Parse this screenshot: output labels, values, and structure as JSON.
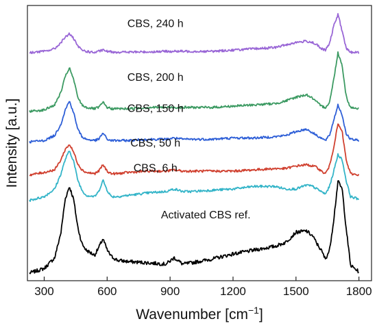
{
  "chart_data": {
    "type": "line",
    "title": "",
    "xlabel": "Wavenumber [cm",
    "xlabel_sup": "−1",
    "xlabel_suffix": "]",
    "ylabel": "Intensity [a.u.]",
    "xlim": [
      220,
      1860
    ],
    "ylim": [
      0,
      10.8
    ],
    "x_ticks": [
      300,
      600,
      900,
      1200,
      1500,
      1800
    ],
    "x_tick_labels": [
      "300",
      "600",
      "900",
      "1200",
      "1500",
      "1800"
    ],
    "y_ticks": [],
    "grid": false,
    "legend": "none",
    "x": [
      230,
      300,
      350,
      380,
      400,
      420,
      440,
      460,
      480,
      500,
      540,
      560,
      580,
      600,
      620,
      650,
      700,
      800,
      880,
      920,
      960,
      1000,
      1100,
      1200,
      1300,
      1400,
      1450,
      1500,
      1550,
      1580,
      1600,
      1620,
      1640,
      1660,
      1680,
      1700,
      1720,
      1740,
      1760,
      1800
    ],
    "series": [
      {
        "name": "Activated CBS ref.",
        "color": "#000000",
        "values": [
          0.3,
          0.48,
          0.9,
          1.9,
          3.2,
          3.7,
          3.2,
          2.1,
          1.45,
          1.2,
          1.0,
          1.3,
          1.65,
          1.2,
          0.95,
          0.8,
          0.75,
          0.7,
          0.65,
          0.9,
          0.65,
          0.7,
          0.85,
          1.05,
          1.2,
          1.35,
          1.5,
          1.9,
          1.95,
          1.75,
          1.45,
          1.2,
          0.85,
          1.2,
          2.4,
          3.9,
          3.6,
          2.0,
          0.6,
          0.35
        ]
      },
      {
        "name": "CBS, 6 h",
        "color": "#33b4c8",
        "values": [
          3.15,
          3.3,
          3.6,
          4.2,
          4.75,
          5.1,
          4.7,
          3.95,
          3.55,
          3.35,
          3.3,
          3.5,
          3.95,
          3.55,
          3.3,
          3.3,
          3.35,
          3.45,
          3.5,
          3.6,
          3.5,
          3.5,
          3.55,
          3.6,
          3.7,
          3.7,
          3.6,
          3.6,
          3.75,
          3.7,
          3.6,
          3.5,
          3.4,
          3.7,
          4.3,
          4.95,
          4.75,
          3.9,
          3.3,
          3.2
        ]
      },
      {
        "name": "CBS, 50 h",
        "color": "#d0402f",
        "values": [
          4.15,
          4.25,
          4.35,
          4.75,
          5.15,
          5.35,
          5.05,
          4.6,
          4.35,
          4.25,
          4.2,
          4.3,
          4.55,
          4.3,
          4.2,
          4.2,
          4.25,
          4.3,
          4.3,
          4.35,
          4.3,
          4.3,
          4.3,
          4.3,
          4.35,
          4.4,
          4.4,
          4.5,
          4.55,
          4.5,
          4.45,
          4.3,
          4.2,
          4.5,
          5.25,
          6.15,
          5.85,
          4.7,
          4.2,
          4.15
        ]
      },
      {
        "name": "CBS, 150 h",
        "color": "#2e5fd7",
        "values": [
          5.45,
          5.5,
          5.7,
          6.15,
          6.7,
          7.05,
          6.6,
          5.95,
          5.65,
          5.55,
          5.5,
          5.55,
          5.8,
          5.55,
          5.5,
          5.5,
          5.5,
          5.55,
          5.55,
          5.6,
          5.55,
          5.55,
          5.55,
          5.6,
          5.6,
          5.65,
          5.7,
          5.85,
          5.95,
          5.8,
          5.7,
          5.6,
          5.5,
          5.7,
          6.3,
          6.9,
          6.5,
          5.75,
          5.55,
          5.5
        ]
      },
      {
        "name": "CBS, 200 h",
        "color": "#3c9a62",
        "values": [
          6.65,
          6.7,
          6.9,
          7.4,
          8.0,
          8.35,
          7.9,
          7.2,
          6.9,
          6.8,
          6.75,
          6.8,
          7.0,
          6.8,
          6.75,
          6.75,
          6.75,
          6.8,
          6.8,
          6.8,
          6.8,
          6.8,
          6.8,
          6.85,
          6.9,
          6.95,
          7.05,
          7.2,
          7.3,
          7.15,
          7.0,
          6.85,
          6.8,
          7.0,
          7.9,
          8.95,
          8.45,
          7.2,
          6.8,
          6.75
        ]
      },
      {
        "name": "CBS, 240 h",
        "color": "#9966d6",
        "values": [
          8.95,
          9.0,
          9.1,
          9.35,
          9.55,
          9.7,
          9.5,
          9.2,
          9.05,
          9.0,
          8.95,
          9.0,
          9.05,
          9.0,
          8.98,
          8.97,
          8.97,
          8.98,
          9.0,
          9.0,
          9.0,
          9.0,
          9.0,
          9.05,
          9.1,
          9.15,
          9.25,
          9.35,
          9.4,
          9.35,
          9.25,
          9.1,
          9.05,
          9.3,
          10.0,
          10.45,
          9.8,
          9.1,
          8.97,
          8.95
        ]
      }
    ],
    "series_labels": [
      {
        "text": "Activated CBS ref.",
        "x": 1070,
        "y": 2.45
      },
      {
        "text": "CBS, 6 h",
        "x": 830,
        "y": 4.28
      },
      {
        "text": "CBS, 50 h",
        "x": 830,
        "y": 5.27
      },
      {
        "text": "CBS, 150 h",
        "x": 830,
        "y": 6.62
      },
      {
        "text": "CBS, 200 h",
        "x": 830,
        "y": 7.85
      },
      {
        "text": "CBS, 240 h",
        "x": 830,
        "y": 9.95
      }
    ]
  }
}
